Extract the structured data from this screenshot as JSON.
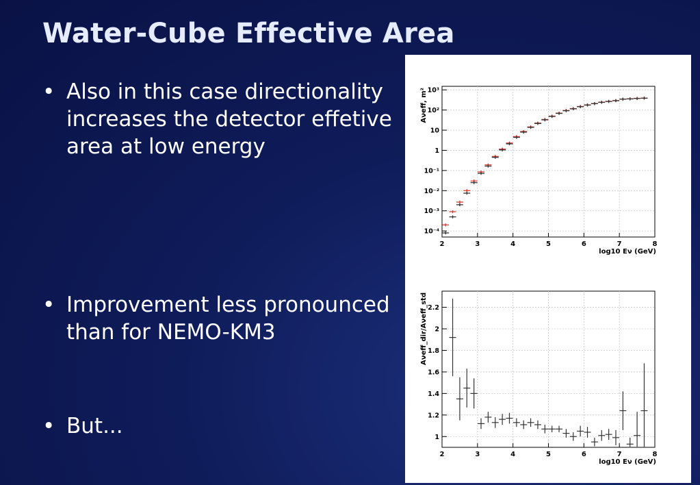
{
  "slide": {
    "title": "Water-Cube Effective Area",
    "bullets": [
      {
        "marker": "•",
        "text": "Also in this case directionality increases the detector effetive area at low energy"
      },
      {
        "marker": "•",
        "text": "Improvement less pronounced than for NEMO-KM3"
      },
      {
        "marker": "•",
        "text": "But..."
      }
    ]
  },
  "colors": {
    "bg": "#0f1c5a",
    "series_dir": "#d83a2a",
    "series_std": "#333333",
    "ratio": "#333333"
  },
  "chart_data": [
    {
      "type": "scatter",
      "title": "",
      "xlabel": "log10 Eν (GeV)",
      "ylabel": "Aνeff, m²",
      "log_y": true,
      "xlim": [
        2,
        8
      ],
      "ylim": [
        5e-05,
        1500
      ],
      "x_ticks": [
        "2",
        "3",
        "4",
        "5",
        "6",
        "7",
        "8"
      ],
      "y_ticks": [
        "10⁻⁴",
        "10⁻³",
        "10⁻²",
        "10⁻¹",
        "1",
        "10",
        "10²",
        "10³"
      ],
      "grid": true,
      "x": [
        2.1,
        2.3,
        2.5,
        2.7,
        2.9,
        3.1,
        3.3,
        3.5,
        3.7,
        3.9,
        4.1,
        4.3,
        4.5,
        4.7,
        4.9,
        5.1,
        5.3,
        5.5,
        5.7,
        5.9,
        6.1,
        6.3,
        6.5,
        6.7,
        6.9,
        7.1,
        7.3,
        7.5,
        7.7
      ],
      "series": [
        {
          "name": "",
          "values": [
            0.0002,
            0.0009,
            0.0027,
            0.01,
            0.03,
            0.085,
            0.19,
            0.5,
            1.15,
            2.3,
            4.8,
            8.6,
            14.5,
            22.5,
            34,
            50,
            70,
            95,
            118,
            150,
            180,
            210,
            245,
            270,
            295,
            350,
            360,
            380,
            390
          ]
        },
        {
          "name": "",
          "values": [
            8e-05,
            0.0005,
            0.002,
            0.0075,
            0.025,
            0.072,
            0.165,
            0.45,
            1.05,
            2.1,
            4.4,
            8,
            13.8,
            21.5,
            32.5,
            48,
            68,
            92,
            115,
            146,
            176,
            206,
            240,
            265,
            290,
            345,
            355,
            375,
            385
          ]
        }
      ]
    },
    {
      "type": "scatter",
      "title": "",
      "xlabel": "log10 Eν (GeV)",
      "ylabel": "Aνeff_dir/Aνeff_std",
      "xlim": [
        2,
        8
      ],
      "ylim": [
        0.9,
        2.35
      ],
      "x_ticks": [
        "2",
        "3",
        "4",
        "5",
        "6",
        "7",
        "8"
      ],
      "y_ticks": [
        "1",
        "1.2",
        "1.4",
        "1.6",
        "1.8",
        "2",
        "2.2"
      ],
      "grid": true,
      "x": [
        2.3,
        2.5,
        2.7,
        2.9,
        3.1,
        3.3,
        3.5,
        3.7,
        3.9,
        4.1,
        4.3,
        4.5,
        4.7,
        4.9,
        5.1,
        5.3,
        5.5,
        5.7,
        5.9,
        6.1,
        6.3,
        6.5,
        6.7,
        6.9,
        7.1,
        7.3,
        7.5,
        7.7
      ],
      "y": [
        1.92,
        1.35,
        1.45,
        1.4,
        1.12,
        1.18,
        1.13,
        1.16,
        1.17,
        1.13,
        1.11,
        1.13,
        1.11,
        1.07,
        1.07,
        1.07,
        1.03,
        1.0,
        1.05,
        1.04,
        0.95,
        1.01,
        1.02,
        0.99,
        1.24,
        0.93,
        1.01,
        1.24
      ],
      "err": [
        0.36,
        0.2,
        0.18,
        0.14,
        0.05,
        0.05,
        0.05,
        0.05,
        0.05,
        0.04,
        0.04,
        0.04,
        0.04,
        0.04,
        0.03,
        0.03,
        0.04,
        0.04,
        0.05,
        0.05,
        0.04,
        0.05,
        0.05,
        0.07,
        0.18,
        0.06,
        0.22,
        0.44
      ]
    }
  ]
}
